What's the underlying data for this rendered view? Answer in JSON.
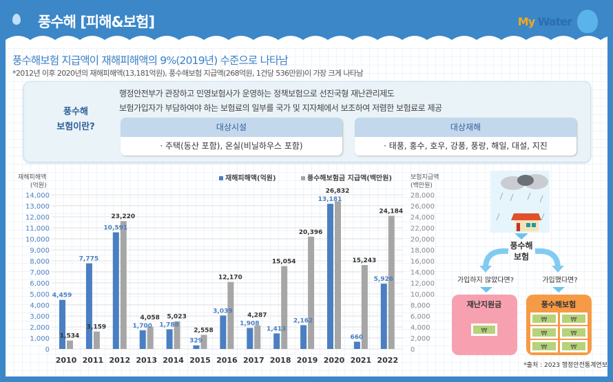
{
  "header": {
    "title": "풍수해 [피해&보험]",
    "logo": "My Water",
    "logo_my": "My",
    "logo_water": "Water"
  },
  "headline": "풍수해보험 지급액이 재해피해액의 9%(2019년) 수준으로 나타남",
  "subnote": "*2012년 이후 2020년의 재해피해액(13,181억원), 풍수해보험 지급액(268억원, 1건당 536만원)이 가장 크게 나타남",
  "info": {
    "label_line1": "풍수해",
    "label_line2": "보험이란?",
    "desc1": "행정안전부가 관장하고 민영보험사가 운영하는 정책보험으로 선진국형 재난관리제도",
    "desc2": "보험가입자가 부담하여야 하는 보험료의 일부를 국가 및 지자체에서 보조하여 저렴한 보험료로 제공",
    "facility_title": "대상시설",
    "facility_body": "· 주택(동산 포함), 온실(비닐하우스 포함)",
    "disaster_title": "대상재해",
    "disaster_body": "· 태풍, 홍수, 호우, 강풍, 풍랑, 해일, 대설, 지진"
  },
  "chart_data": {
    "type": "bar",
    "categories": [
      "2010",
      "2011",
      "2012",
      "2013",
      "2014",
      "2015",
      "2016",
      "2017",
      "2018",
      "2019",
      "2020",
      "2021",
      "2022"
    ],
    "series": [
      {
        "name": "재해피해액(억원)",
        "axis": "left",
        "color": "#4a7fc1",
        "values": [
          4459,
          7775,
          10591,
          1700,
          1788,
          329,
          3039,
          1908,
          1413,
          2162,
          13181,
          660,
          5926
        ]
      },
      {
        "name": "풍수해보험금 지급액(백만원)",
        "axis": "right",
        "color": "#a6a6a6",
        "values": [
          1534,
          3159,
          23220,
          4058,
          5023,
          2558,
          12170,
          4287,
          15054,
          20396,
          26832,
          15243,
          24184
        ]
      }
    ],
    "ylabel_left_line1": "재해피해액",
    "ylabel_left_line2": "(억원)",
    "ylabel_right_line1": "보험지급액",
    "ylabel_right_line2": "(백만원)",
    "ylim_left": [
      0,
      14000
    ],
    "ylim_right": [
      0,
      28000
    ],
    "yticks_left": [
      "0",
      "1,000",
      "2,000",
      "3,000",
      "4,000",
      "5,000",
      "6,000",
      "7,000",
      "8,000",
      "9,000",
      "10,000",
      "11,000",
      "12,000",
      "13,000",
      "14,000"
    ],
    "yticks_right": [
      "0",
      "2,000",
      "4,000",
      "6,000",
      "8,000",
      "10,000",
      "12,000",
      "14,000",
      "16,000",
      "18,000",
      "20,000",
      "22,000",
      "24,000",
      "26,000",
      "28,000"
    ],
    "grid": true,
    "legend": "top-right"
  },
  "diagram": {
    "center_line1": "풍수해",
    "center_line2": "보험",
    "left_q": "가입하지 않았다면?",
    "right_q": "가입했다면?",
    "left_box": "재난지원금",
    "right_box": "풍수해보험",
    "won": "₩",
    "source": "*출처 : 2023 행정안전통계연보"
  }
}
